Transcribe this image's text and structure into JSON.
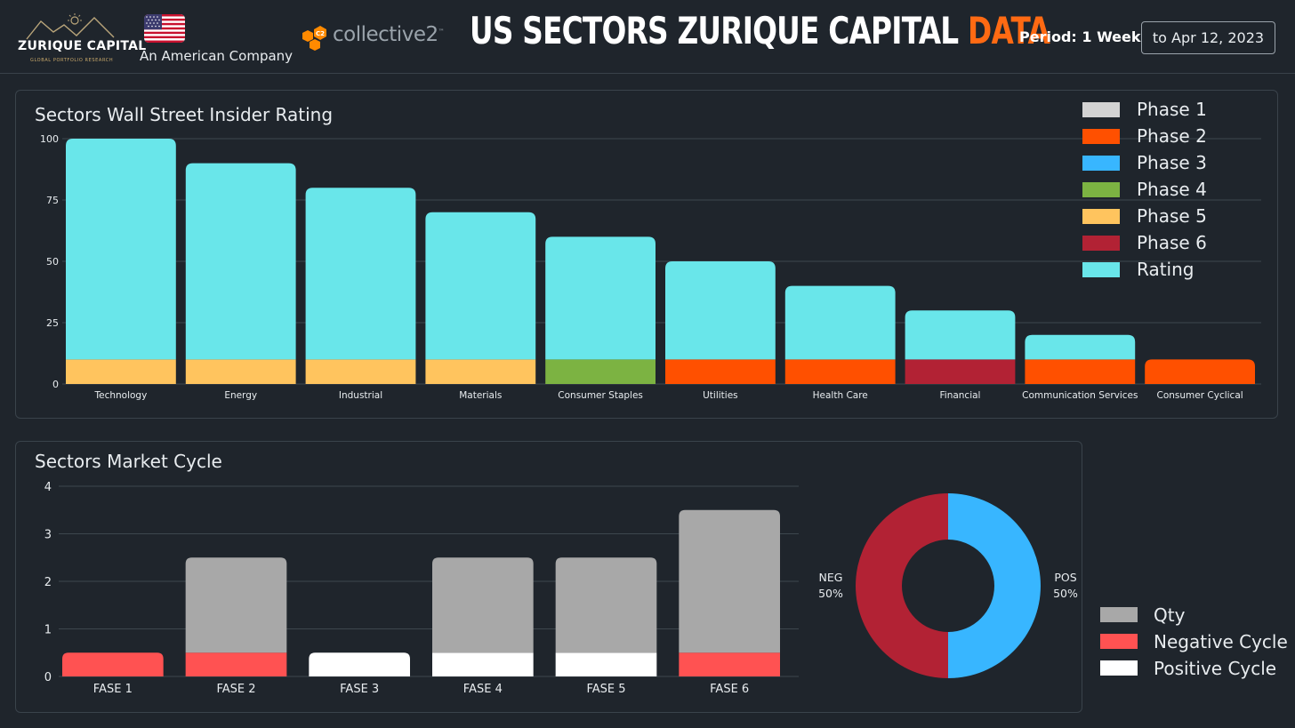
{
  "header": {
    "logo_name": "ZURIQUE CAPITAL",
    "logo_tagline": "GLOBAL PORTFOLIO RESEARCH",
    "company_tagline": "An American Company",
    "partner_mark": "C2",
    "partner_name": "collective2",
    "partner_tm": "™",
    "title_main": "US SECTORS ZURIQUE CAPITAL",
    "title_accent": "DATA",
    "period_label": "Period: 1 Week",
    "date_range": "to Apr 12, 2023"
  },
  "colors": {
    "background": "#1f252c",
    "accent": "#ff6a13",
    "phase1": "#d3d3d3",
    "phase2": "#ff5000",
    "phase3": "#38b6ff",
    "phase4": "#7cb342",
    "phase5": "#ffc45e",
    "phase6": "#b22234",
    "rating": "#69e6ea",
    "qty": "#a8a8a8",
    "negative_cycle": "#ff5252",
    "positive_cycle": "#ffffff",
    "donut_neg": "#b22234",
    "donut_pos": "#38b6ff"
  },
  "chart_data": [
    {
      "type": "bar",
      "stacked": true,
      "title": "Sectors Wall Street Insider Rating",
      "categories": [
        "Technology",
        "Energy",
        "Industrial",
        "Materials",
        "Consumer Staples",
        "Utilities",
        "Health Care",
        "Financial",
        "Communication Services",
        "Consumer Cyclical"
      ],
      "y_ticks": [
        0,
        25,
        50,
        75,
        100
      ],
      "ylim": [
        0,
        100
      ],
      "series": [
        {
          "name": "Phase 1",
          "color_key": "phase1",
          "values": [
            0,
            0,
            0,
            0,
            0,
            0,
            0,
            0,
            0,
            0
          ]
        },
        {
          "name": "Phase 2",
          "color_key": "phase2",
          "values": [
            0,
            0,
            0,
            0,
            0,
            10,
            10,
            0,
            10,
            10
          ]
        },
        {
          "name": "Phase 3",
          "color_key": "phase3",
          "values": [
            0,
            0,
            0,
            0,
            0,
            0,
            0,
            0,
            0,
            0
          ]
        },
        {
          "name": "Phase 4",
          "color_key": "phase4",
          "values": [
            0,
            0,
            0,
            0,
            10,
            0,
            0,
            0,
            0,
            0
          ]
        },
        {
          "name": "Phase 5",
          "color_key": "phase5",
          "values": [
            10,
            10,
            10,
            10,
            0,
            0,
            0,
            0,
            0,
            0
          ]
        },
        {
          "name": "Phase 6",
          "color_key": "phase6",
          "values": [
            0,
            0,
            0,
            0,
            0,
            0,
            0,
            10,
            0,
            0
          ]
        },
        {
          "name": "Rating",
          "color_key": "rating",
          "values": [
            90,
            80,
            70,
            60,
            50,
            40,
            30,
            20,
            10,
            0
          ]
        }
      ],
      "legend_position": "top-right"
    },
    {
      "type": "bar",
      "stacked": true,
      "title": "Sectors Market Cycle",
      "categories": [
        "FASE 1",
        "FASE 2",
        "FASE 3",
        "FASE 4",
        "FASE 5",
        "FASE 6"
      ],
      "y_ticks": [
        0,
        1,
        2,
        3,
        4
      ],
      "ylim": [
        0,
        4
      ],
      "series": [
        {
          "name": "Negative Cycle",
          "color_key": "negative_cycle",
          "values": [
            0.5,
            0.5,
            0,
            0,
            0,
            0.5
          ]
        },
        {
          "name": "Positive Cycle",
          "color_key": "positive_cycle",
          "values": [
            0,
            0,
            0.5,
            0.5,
            0.5,
            0
          ]
        },
        {
          "name": "Qty",
          "color_key": "qty",
          "values": [
            0,
            2,
            0,
            2,
            2,
            3
          ]
        }
      ],
      "legend": [
        "Qty",
        "Negative Cycle",
        "Positive Cycle"
      ],
      "legend_position": "bottom-right"
    },
    {
      "type": "pie",
      "donut": true,
      "slices": [
        {
          "name": "NEG",
          "value": 50,
          "label": "50%",
          "color_key": "donut_neg"
        },
        {
          "name": "POS",
          "value": 50,
          "label": "50%",
          "color_key": "donut_pos"
        }
      ]
    }
  ]
}
